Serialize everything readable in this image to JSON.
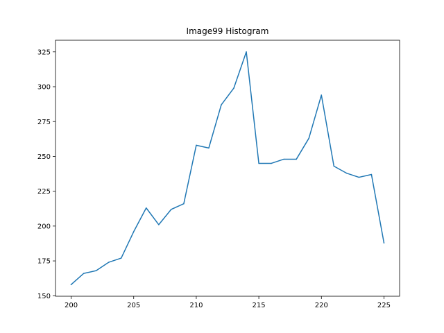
{
  "chart_data": {
    "type": "line",
    "title": "Image99 Histogram",
    "xlabel": "",
    "ylabel": "",
    "x": [
      200,
      201,
      202,
      203,
      204,
      205,
      206,
      207,
      208,
      209,
      210,
      211,
      212,
      213,
      214,
      215,
      216,
      217,
      218,
      219,
      220,
      221,
      222,
      223,
      224,
      225
    ],
    "series": [
      {
        "values": [
          158,
          166,
          168,
          174,
          177,
          196,
          213,
          201,
          212,
          216,
          258,
          256,
          287,
          299,
          325,
          245,
          245,
          248,
          248,
          263,
          294,
          243,
          238,
          235,
          237,
          188
        ]
      }
    ],
    "xlim": [
      198.75,
      226.25
    ],
    "ylim": [
      149.65,
      333.35
    ],
    "xticks": [
      200,
      205,
      210,
      215,
      220,
      225
    ],
    "yticks": [
      150,
      175,
      200,
      225,
      250,
      275,
      300,
      325
    ],
    "grid": false,
    "legend": "none",
    "line_color": "#1f77b4"
  }
}
